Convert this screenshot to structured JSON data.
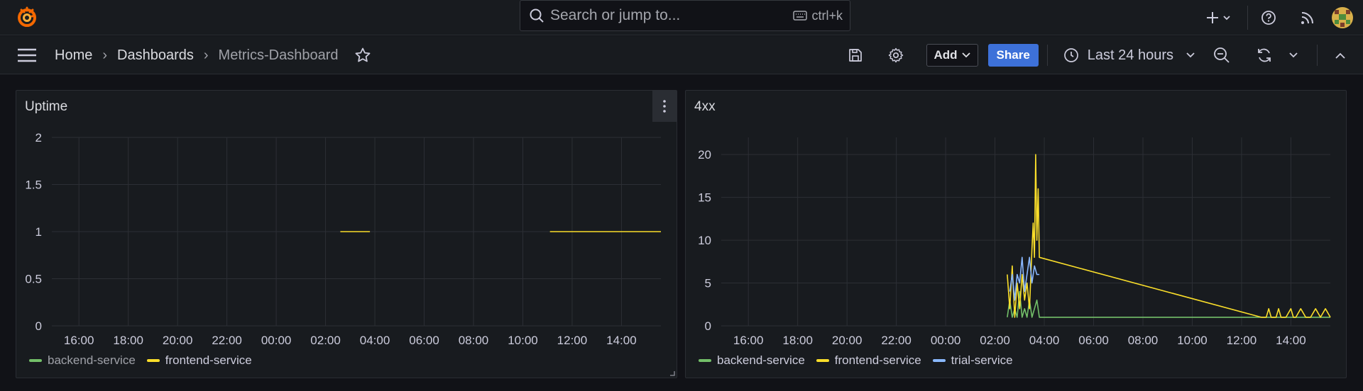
{
  "topbar": {
    "search_placeholder": "Search or jump to...",
    "search_shortcut": "ctrl+k"
  },
  "breadcrumb": {
    "home": "Home",
    "dashboards": "Dashboards",
    "current": "Metrics-Dashboard"
  },
  "toolbar": {
    "add_label": "Add",
    "share_label": "Share",
    "time_range": "Last 24 hours"
  },
  "colors": {
    "green": "#73bf69",
    "yellow": "#fade2a",
    "blue": "#8ab8ff",
    "accent": "#3d71d9"
  },
  "panels": [
    {
      "title": "Uptime",
      "legend": [
        {
          "name": "backend-service",
          "color": "#73bf69"
        },
        {
          "name": "frontend-service",
          "color": "#fade2a"
        }
      ]
    },
    {
      "title": "4xx",
      "legend": [
        {
          "name": "backend-service",
          "color": "#73bf69"
        },
        {
          "name": "frontend-service",
          "color": "#fade2a"
        },
        {
          "name": "trial-service",
          "color": "#8ab8ff"
        }
      ]
    }
  ],
  "chart_data": [
    {
      "type": "line",
      "title": "Uptime",
      "x_ticks": [
        "16:00",
        "18:00",
        "20:00",
        "22:00",
        "00:00",
        "02:00",
        "04:00",
        "06:00",
        "08:00",
        "10:00",
        "12:00",
        "14:00"
      ],
      "y_ticks": [
        "0",
        "0.5",
        "1",
        "1.5",
        "2"
      ],
      "ylim": [
        0,
        2
      ],
      "xlim_hours": [
        14.9,
        39.6
      ],
      "series": [
        {
          "name": "backend-service",
          "color": "#73bf69",
          "x": [],
          "y": []
        },
        {
          "name": "frontend-service",
          "color": "#fade2a",
          "segments": [
            {
              "x": [
                26.6,
                27.8
              ],
              "y": [
                1,
                1
              ]
            },
            {
              "x": [
                35.1,
                39.6
              ],
              "y": [
                1,
                1
              ]
            }
          ]
        }
      ]
    },
    {
      "type": "line",
      "title": "4xx",
      "x_ticks": [
        "16:00",
        "18:00",
        "20:00",
        "22:00",
        "00:00",
        "02:00",
        "04:00",
        "06:00",
        "08:00",
        "10:00",
        "12:00",
        "14:00"
      ],
      "y_ticks": [
        "0",
        "5",
        "10",
        "15",
        "20"
      ],
      "ylim": [
        0,
        22
      ],
      "xlim_hours": [
        14.9,
        39.6
      ],
      "series": [
        {
          "name": "backend-service",
          "color": "#73bf69",
          "x": [
            26.5,
            26.6,
            26.7,
            26.8,
            26.9,
            27.0,
            27.1,
            27.2,
            27.3,
            27.4,
            27.5,
            27.6,
            27.7,
            27.8,
            36.8,
            39.6
          ],
          "y": [
            1,
            3,
            1,
            2,
            1,
            4,
            1,
            2,
            1,
            3,
            1,
            2,
            3,
            1,
            1,
            1
          ]
        },
        {
          "name": "frontend-service",
          "color": "#fade2a",
          "x": [
            26.5,
            26.6,
            26.7,
            26.8,
            26.9,
            27.0,
            27.1,
            27.2,
            27.3,
            27.4,
            27.5,
            27.55,
            27.6,
            27.65,
            27.7,
            27.75,
            27.8,
            36.8,
            37.0,
            37.1,
            37.2,
            37.4,
            37.5,
            37.6,
            37.8,
            38.0,
            38.1,
            38.2,
            38.4,
            38.6,
            38.8,
            39.0,
            39.2,
            39.4,
            39.6
          ],
          "y": [
            6,
            2,
            7,
            1,
            5,
            2,
            6,
            3,
            5,
            2,
            9,
            12,
            8,
            20,
            10,
            16,
            8,
            1,
            1,
            2,
            1,
            1,
            2,
            1,
            1,
            2,
            1,
            1,
            2,
            1,
            1,
            2,
            1,
            2,
            1
          ]
        },
        {
          "name": "trial-service",
          "color": "#8ab8ff",
          "x": [
            26.6,
            26.7,
            26.8,
            26.9,
            27.0,
            27.1,
            27.2,
            27.3,
            27.4,
            27.5,
            27.6,
            27.7,
            27.8
          ],
          "y": [
            4,
            6,
            3,
            6,
            5,
            8,
            4,
            6,
            8,
            5,
            7,
            6,
            6
          ]
        }
      ]
    }
  ]
}
